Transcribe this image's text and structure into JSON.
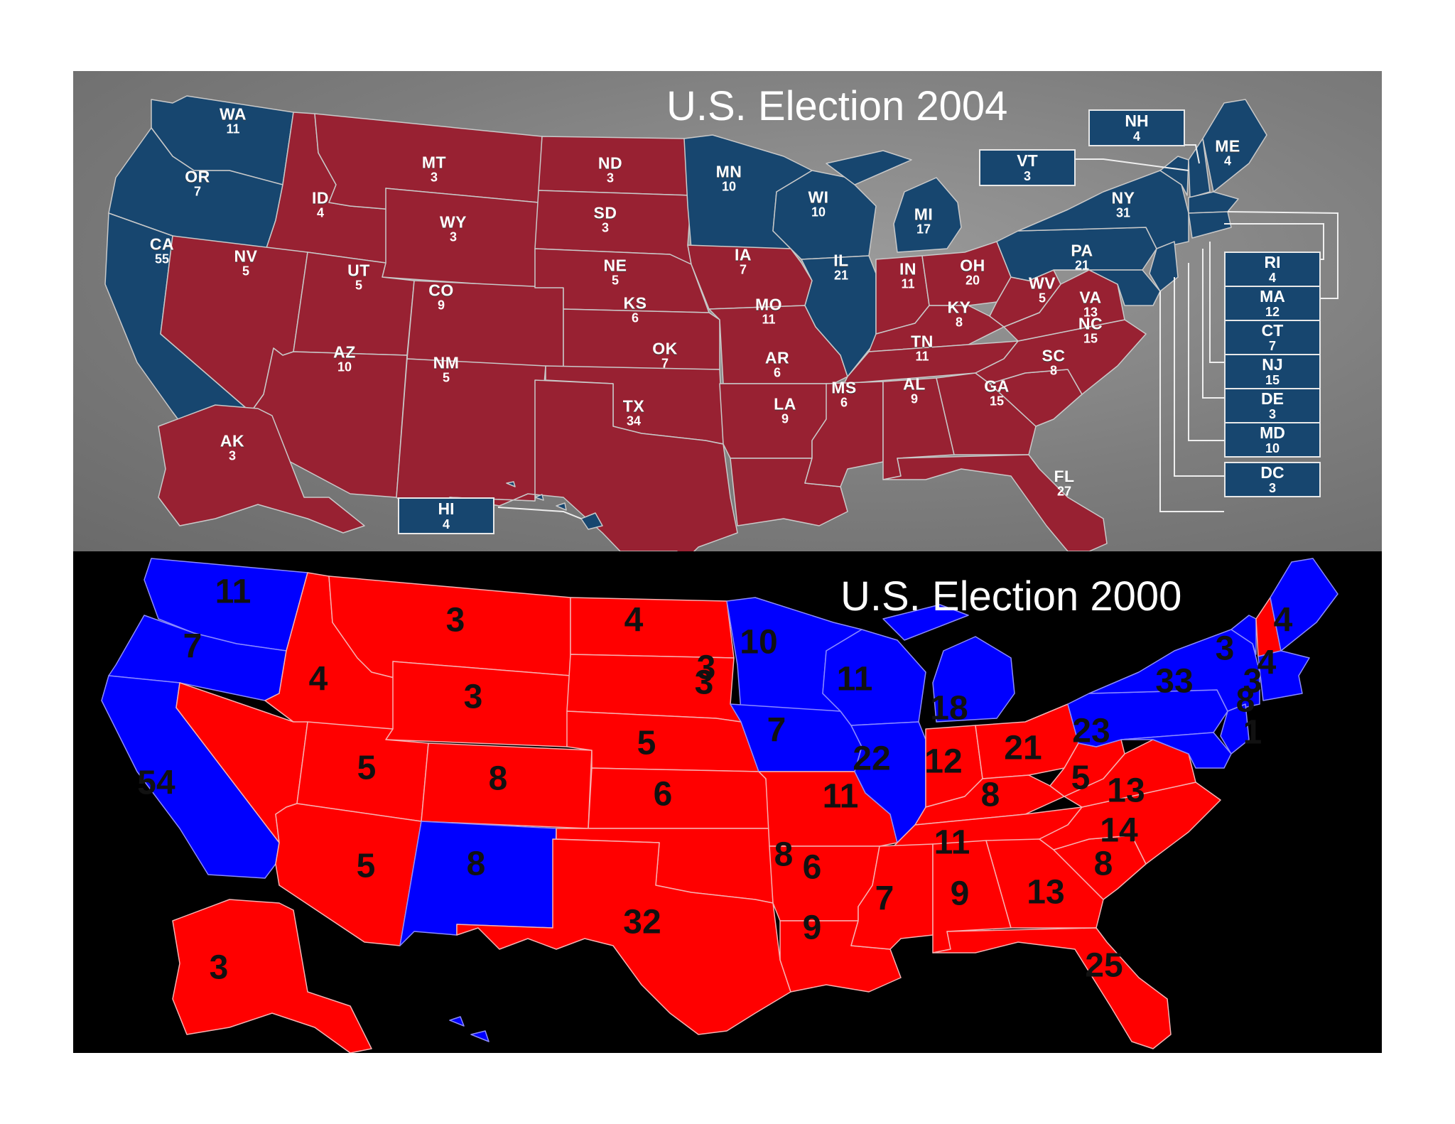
{
  "colors": {
    "red2004": "#982132",
    "blue2004": "#17466f",
    "red2000": "#ff0000",
    "blue2000": "#0000ff",
    "bg2004": "#808080",
    "bg2000": "#000000"
  },
  "map2004": {
    "title": "U.S. Election 2004",
    "states": [
      {
        "abbr": "WA",
        "ev": "11"
      },
      {
        "abbr": "OR",
        "ev": "7"
      },
      {
        "abbr": "CA",
        "ev": "55"
      },
      {
        "abbr": "ID",
        "ev": "4"
      },
      {
        "abbr": "NV",
        "ev": "5"
      },
      {
        "abbr": "MT",
        "ev": "3"
      },
      {
        "abbr": "WY",
        "ev": "3"
      },
      {
        "abbr": "UT",
        "ev": "5"
      },
      {
        "abbr": "AZ",
        "ev": "10"
      },
      {
        "abbr": "CO",
        "ev": "9"
      },
      {
        "abbr": "NM",
        "ev": "5"
      },
      {
        "abbr": "ND",
        "ev": "3"
      },
      {
        "abbr": "SD",
        "ev": "3"
      },
      {
        "abbr": "NE",
        "ev": "5"
      },
      {
        "abbr": "KS",
        "ev": "6"
      },
      {
        "abbr": "OK",
        "ev": "7"
      },
      {
        "abbr": "TX",
        "ev": "34"
      },
      {
        "abbr": "MN",
        "ev": "10"
      },
      {
        "abbr": "IA",
        "ev": "7"
      },
      {
        "abbr": "MO",
        "ev": "11"
      },
      {
        "abbr": "AR",
        "ev": "6"
      },
      {
        "abbr": "LA",
        "ev": "9"
      },
      {
        "abbr": "WI",
        "ev": "10"
      },
      {
        "abbr": "IL",
        "ev": "21"
      },
      {
        "abbr": "MI",
        "ev": "17"
      },
      {
        "abbr": "IN",
        "ev": "11"
      },
      {
        "abbr": "OH",
        "ev": "20"
      },
      {
        "abbr": "KY",
        "ev": "8"
      },
      {
        "abbr": "TN",
        "ev": "11"
      },
      {
        "abbr": "MS",
        "ev": "6"
      },
      {
        "abbr": "AL",
        "ev": "9"
      },
      {
        "abbr": "GA",
        "ev": "15"
      },
      {
        "abbr": "FL",
        "ev": "27"
      },
      {
        "abbr": "SC",
        "ev": "8"
      },
      {
        "abbr": "NC",
        "ev": "15"
      },
      {
        "abbr": "VA",
        "ev": "13"
      },
      {
        "abbr": "WV",
        "ev": "5"
      },
      {
        "abbr": "PA",
        "ev": "21"
      },
      {
        "abbr": "NY",
        "ev": "31"
      },
      {
        "abbr": "ME",
        "ev": "4"
      },
      {
        "abbr": "AK",
        "ev": "3"
      }
    ],
    "boxes": [
      {
        "abbr": "NH",
        "ev": "4"
      },
      {
        "abbr": "VT",
        "ev": "3"
      },
      {
        "abbr": "HI",
        "ev": "4"
      },
      {
        "abbr": "RI",
        "ev": "4"
      },
      {
        "abbr": "MA",
        "ev": "12"
      },
      {
        "abbr": "CT",
        "ev": "7"
      },
      {
        "abbr": "NJ",
        "ev": "15"
      },
      {
        "abbr": "DE",
        "ev": "3"
      },
      {
        "abbr": "MD",
        "ev": "10"
      },
      {
        "abbr": "DC",
        "ev": "3"
      }
    ]
  },
  "map2000": {
    "title": "U.S. Election 2000",
    "labels": [
      "11",
      "7",
      "54",
      "3",
      "4",
      "3",
      "4",
      "3",
      "5",
      "8",
      "5",
      "8",
      "3",
      "3",
      "5",
      "6",
      "8",
      "32",
      "10",
      "7",
      "11",
      "6",
      "9",
      "11",
      "22",
      "18",
      "12",
      "21",
      "8",
      "11",
      "7",
      "9",
      "13",
      "8",
      "14",
      "5",
      "13",
      "23",
      "33",
      "3",
      "4",
      "8",
      "1",
      "4",
      "25",
      "3"
    ]
  }
}
